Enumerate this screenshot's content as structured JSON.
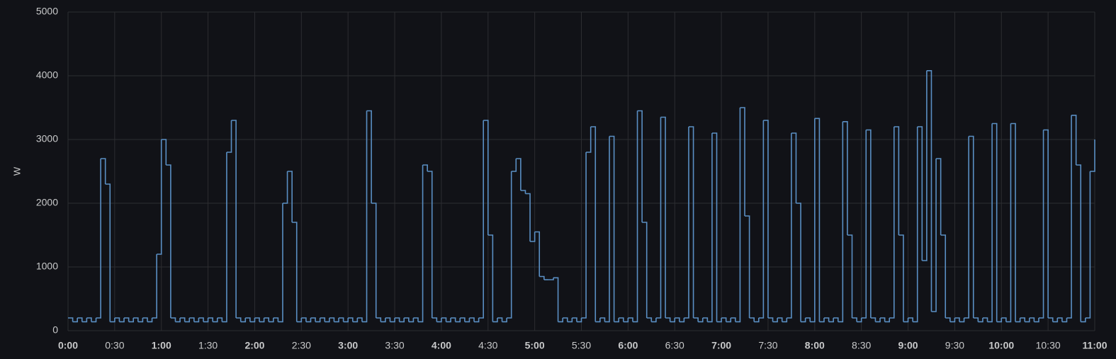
{
  "chart_data": {
    "type": "line",
    "step": true,
    "y_label": "W",
    "color": "#5a8fc4",
    "grid": true,
    "xlim": [
      0,
      660
    ],
    "xticks": [
      {
        "value": 0,
        "label": "0:00"
      },
      {
        "value": 30,
        "label": "0:30"
      },
      {
        "value": 60,
        "label": "1:00"
      },
      {
        "value": 90,
        "label": "1:30"
      },
      {
        "value": 120,
        "label": "2:00"
      },
      {
        "value": 150,
        "label": "2:30"
      },
      {
        "value": 180,
        "label": "3:00"
      },
      {
        "value": 210,
        "label": "3:30"
      },
      {
        "value": 240,
        "label": "4:00"
      },
      {
        "value": 270,
        "label": "4:30"
      },
      {
        "value": 300,
        "label": "5:00"
      },
      {
        "value": 330,
        "label": "5:30"
      },
      {
        "value": 360,
        "label": "6:00"
      },
      {
        "value": 390,
        "label": "6:30"
      },
      {
        "value": 420,
        "label": "7:00"
      },
      {
        "value": 450,
        "label": "7:30"
      },
      {
        "value": 480,
        "label": "8:00"
      },
      {
        "value": 510,
        "label": "8:30"
      },
      {
        "value": 540,
        "label": "9:00"
      },
      {
        "value": 570,
        "label": "9:30"
      },
      {
        "value": 600,
        "label": "10:00"
      },
      {
        "value": 630,
        "label": "10:30"
      },
      {
        "value": 660,
        "label": "11:00"
      }
    ],
    "ylim": [
      0,
      5000
    ],
    "yticks": [
      0,
      1000,
      2000,
      3000,
      4000,
      5000
    ],
    "x": [
      0,
      3,
      6,
      9,
      12,
      15,
      18,
      21,
      24,
      27,
      30,
      33,
      36,
      39,
      42,
      45,
      48,
      51,
      54,
      57,
      60,
      63,
      66,
      69,
      72,
      75,
      78,
      81,
      84,
      87,
      90,
      93,
      96,
      99,
      102,
      105,
      108,
      111,
      114,
      117,
      120,
      123,
      126,
      129,
      132,
      135,
      138,
      141,
      144,
      147,
      150,
      153,
      156,
      159,
      162,
      165,
      168,
      171,
      174,
      177,
      180,
      183,
      186,
      189,
      192,
      195,
      198,
      201,
      204,
      207,
      210,
      213,
      216,
      219,
      222,
      225,
      228,
      231,
      234,
      237,
      240,
      243,
      246,
      249,
      252,
      255,
      258,
      261,
      264,
      267,
      270,
      273,
      276,
      279,
      282,
      285,
      288,
      291,
      294,
      297,
      300,
      303,
      306,
      309,
      312,
      315,
      318,
      321,
      324,
      327,
      330,
      333,
      336,
      339,
      342,
      345,
      348,
      351,
      354,
      357,
      360,
      363,
      366,
      369,
      372,
      375,
      378,
      381,
      384,
      387,
      390,
      393,
      396,
      399,
      402,
      405,
      408,
      411,
      414,
      417,
      420,
      423,
      426,
      429,
      432,
      435,
      438,
      441,
      444,
      447,
      450,
      453,
      456,
      459,
      462,
      465,
      468,
      471,
      474,
      477,
      480,
      483,
      486,
      489,
      492,
      495,
      498,
      501,
      504,
      507,
      510,
      513,
      516,
      519,
      522,
      525,
      528,
      531,
      534,
      537,
      540,
      543,
      546,
      549,
      552,
      555,
      558,
      561,
      564,
      567,
      570,
      573,
      576,
      579,
      582,
      585,
      588,
      591,
      594,
      597,
      600,
      603,
      606,
      609,
      612,
      615,
      618,
      621,
      624,
      627,
      630,
      633,
      636,
      639,
      642,
      645,
      648,
      651,
      654,
      657,
      660
    ],
    "values": [
      200,
      140,
      200,
      140,
      200,
      140,
      200,
      2700,
      2300,
      140,
      200,
      140,
      200,
      140,
      200,
      140,
      200,
      140,
      200,
      1200,
      3000,
      2600,
      200,
      140,
      200,
      140,
      200,
      140,
      200,
      140,
      200,
      140,
      200,
      140,
      2800,
      3300,
      200,
      140,
      200,
      140,
      200,
      140,
      200,
      140,
      200,
      140,
      2000,
      2500,
      1700,
      140,
      200,
      140,
      200,
      140,
      200,
      140,
      200,
      140,
      200,
      140,
      200,
      140,
      200,
      140,
      3450,
      2000,
      200,
      140,
      200,
      140,
      200,
      140,
      200,
      140,
      200,
      140,
      2600,
      2500,
      200,
      140,
      200,
      140,
      200,
      140,
      200,
      140,
      200,
      140,
      200,
      3300,
      1500,
      140,
      200,
      140,
      200,
      2500,
      2700,
      2200,
      2150,
      1400,
      1550,
      850,
      800,
      800,
      830,
      140,
      200,
      140,
      200,
      140,
      200,
      2800,
      3200,
      140,
      200,
      140,
      3050,
      140,
      200,
      140,
      200,
      140,
      3450,
      1700,
      200,
      140,
      200,
      3350,
      200,
      140,
      200,
      140,
      200,
      3200,
      200,
      140,
      200,
      140,
      3100,
      140,
      200,
      140,
      200,
      140,
      3500,
      1800,
      200,
      140,
      200,
      3300,
      200,
      140,
      200,
      140,
      200,
      3100,
      2000,
      140,
      200,
      140,
      3330,
      140,
      200,
      140,
      200,
      140,
      3280,
      1500,
      200,
      140,
      200,
      3150,
      200,
      140,
      200,
      140,
      200,
      3200,
      1500,
      140,
      200,
      140,
      3200,
      1100,
      4080,
      300,
      2700,
      1500,
      200,
      140,
      200,
      140,
      200,
      3050,
      200,
      140,
      200,
      140,
      3250,
      140,
      200,
      140,
      3250,
      140,
      200,
      140,
      200,
      140,
      200,
      3150,
      200,
      140,
      200,
      140,
      200,
      3380,
      2600,
      140,
      200,
      2500,
      3000
    ]
  }
}
